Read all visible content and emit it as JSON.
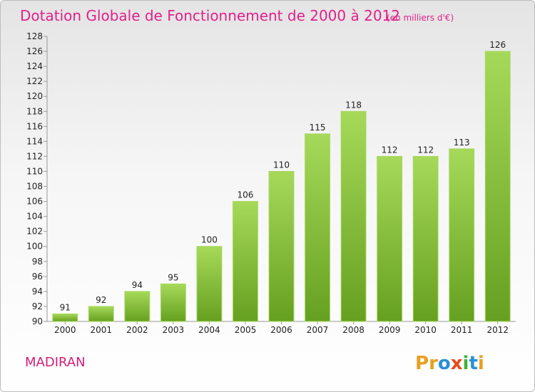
{
  "chart_data": {
    "type": "bar",
    "title": "Dotation Globale de Fonctionnement de 2000 à 2012",
    "subtitle": "(en milliers d'€)",
    "categories": [
      "2000",
      "2001",
      "2002",
      "2003",
      "2004",
      "2005",
      "2006",
      "2007",
      "2008",
      "2009",
      "2010",
      "2011",
      "2012"
    ],
    "values": [
      91,
      92,
      94,
      95,
      100,
      106,
      110,
      115,
      118,
      112,
      112,
      113,
      126
    ],
    "ylim": [
      90,
      128
    ],
    "ytick_step": 2,
    "grid": false,
    "bar_color": "#86c440",
    "bar_color_light": "#a6d95a",
    "bar_color_dark": "#66a020"
  },
  "footer": {
    "commune": "MADIRAN",
    "brand": "Proxiti",
    "brand_colors": [
      "#e8a020",
      "#e8a020",
      "#2a8fd8",
      "#e84a1a",
      "#44b039",
      "#2a8fd8",
      "#e8a020"
    ]
  }
}
